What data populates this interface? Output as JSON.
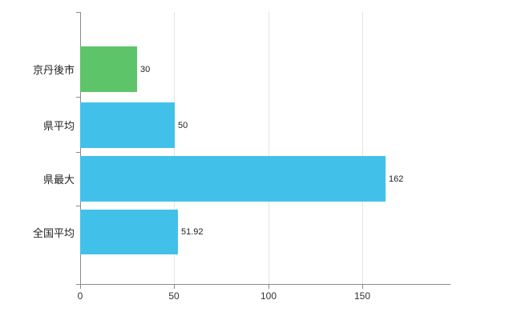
{
  "chart_data": {
    "type": "bar",
    "orientation": "horizontal",
    "title": "",
    "xlabel": "",
    "ylabel": "",
    "categories": [
      "京丹後市",
      "県平均",
      "県最大",
      "全国平均"
    ],
    "values": [
      30,
      50,
      162,
      51.92
    ],
    "value_labels": [
      "30",
      "50",
      "162",
      "51.92"
    ],
    "bar_colors": [
      "#5ec46a",
      "#41c1ea",
      "#41c1ea",
      "#41c1ea"
    ],
    "x_ticks": [
      0,
      50,
      100,
      150
    ],
    "x_tick_labels": [
      "0",
      "50",
      "100",
      "150"
    ],
    "xlim": [
      0,
      196
    ],
    "grid": "vertical-only",
    "legend": "none",
    "background": "#ffffff"
  },
  "colors": {
    "green_bar": "#5ec46a",
    "blue_bar": "#41c1ea",
    "axis": "#8a8a8a",
    "grid": "#e4e4e4",
    "text": "#222222"
  }
}
